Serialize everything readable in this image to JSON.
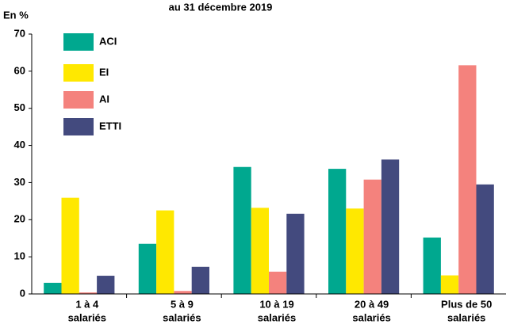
{
  "chart_data": {
    "type": "bar",
    "title": "au 31 décembre 2019",
    "y_label": "En %",
    "categories": [
      [
        "1 à 4",
        "salariés"
      ],
      [
        "5 à 9",
        "salariés"
      ],
      [
        "10 à 19",
        "salariés"
      ],
      [
        "20 à 49",
        "salariés"
      ],
      [
        "Plus de 50",
        "salariés"
      ]
    ],
    "series": [
      {
        "name": "ACI",
        "color": "#00a88f",
        "values": [
          3.0,
          13.5,
          34.2,
          33.7,
          15.2
        ]
      },
      {
        "name": "EI",
        "color": "#ffe800",
        "values": [
          25.9,
          22.5,
          23.2,
          23.0,
          5.0
        ]
      },
      {
        "name": "AI",
        "color": "#f4827d",
        "values": [
          0.4,
          0.8,
          6.0,
          30.8,
          61.6
        ]
      },
      {
        "name": "ETTI",
        "color": "#434a7e",
        "values": [
          4.9,
          7.3,
          21.6,
          36.2,
          29.5
        ]
      }
    ],
    "ylim": [
      0,
      70
    ],
    "yticks": [
      0,
      10,
      20,
      30,
      40,
      50,
      60,
      70
    ],
    "grid": false,
    "legend": "top-left"
  }
}
